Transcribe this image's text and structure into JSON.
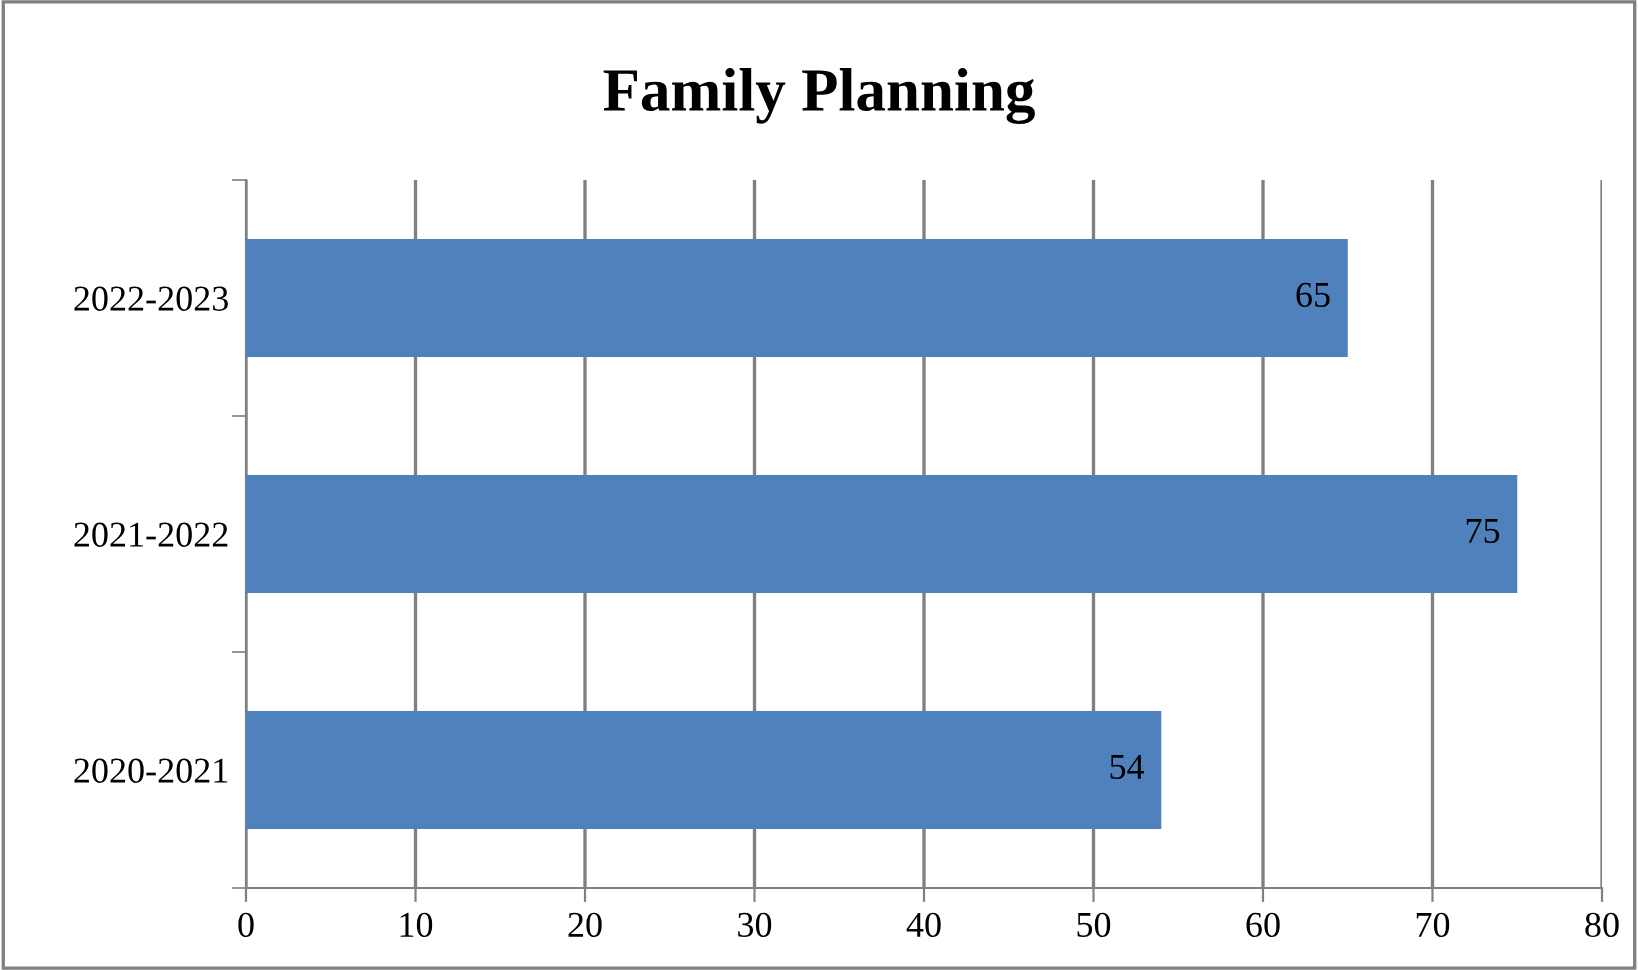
{
  "chart_data": {
    "type": "bar",
    "orientation": "horizontal",
    "title": "Family Planning",
    "categories": [
      "2022-2023",
      "2021-2022",
      "2020-2021"
    ],
    "values": [
      65,
      75,
      54
    ],
    "color": "#4f81bd",
    "xlim": [
      0,
      80
    ],
    "xticks": [
      0,
      10,
      20,
      30,
      40,
      50,
      60,
      70,
      80
    ],
    "grid": "x",
    "data_labels": true
  }
}
